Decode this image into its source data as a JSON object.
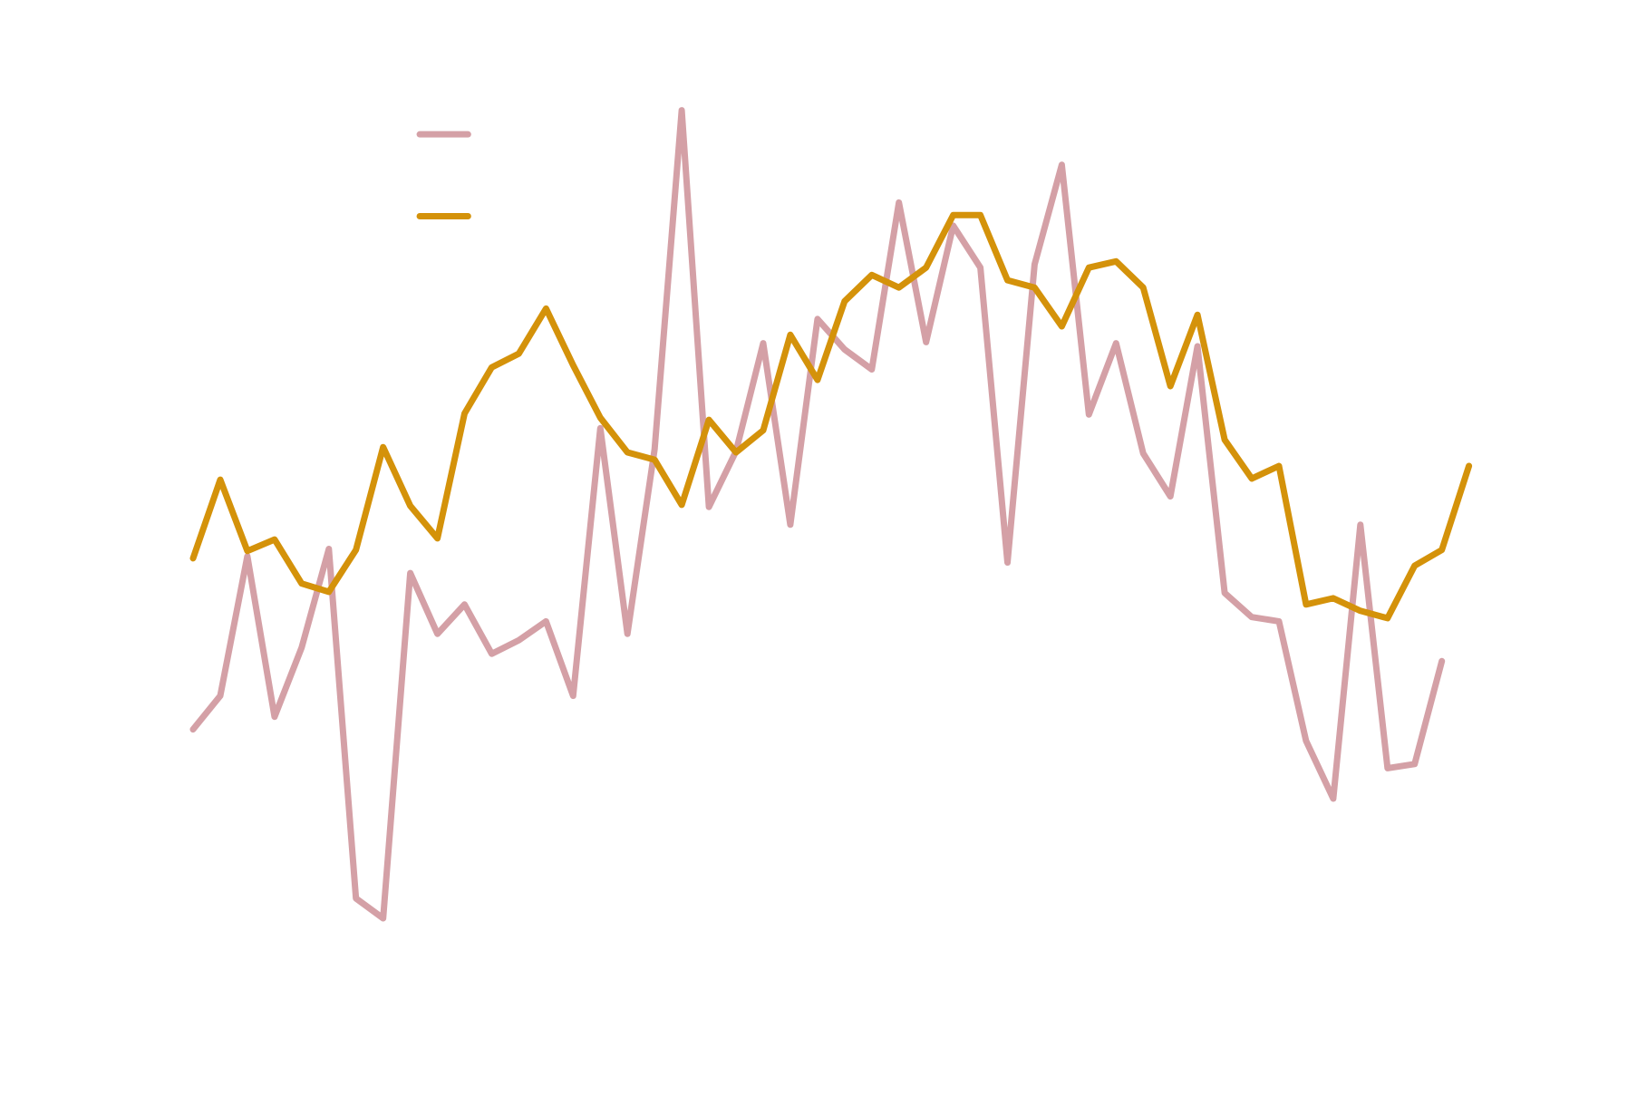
{
  "chart_data": {
    "type": "line",
    "categories": [
      null,
      null,
      null,
      null,
      null,
      null,
      null,
      null,
      null,
      null,
      null,
      null,
      null,
      null,
      null,
      null,
      null,
      null,
      null,
      null,
      null,
      null,
      null,
      null,
      null,
      null,
      null,
      null,
      null,
      null,
      null,
      null,
      null,
      null,
      null,
      null,
      null,
      null,
      null,
      null,
      null,
      null,
      null,
      null,
      null,
      null,
      null,
      null
    ],
    "ylim": [
      0,
      104
    ],
    "series": [
      {
        "color": "#d4a0a6",
        "values": [
          34.5,
          37.7,
          51,
          35.7,
          42.3,
          51.7,
          18.4,
          16.5,
          49.4,
          43.6,
          46.4,
          41.7,
          43,
          44.8,
          37.7,
          63.2,
          43.6,
          61.2,
          93.5,
          55.7,
          61,
          71.3,
          54,
          73.6,
          70.7,
          68.8,
          84.7,
          71.4,
          82.5,
          78.5,
          50.4,
          78.8,
          88.3,
          64.5,
          71.3,
          60.8,
          56.7,
          71,
          47.5,
          45.2,
          44.8,
          33.4,
          27.9,
          54,
          30.8,
          31.2,
          41,
          null
        ]
      },
      {
        "color": "#d4920a",
        "values": [
          50.8,
          58.3,
          51.5,
          52.6,
          48.4,
          47.6,
          51.6,
          61.4,
          55.8,
          52.7,
          64.6,
          69,
          70.3,
          74.6,
          69.2,
          64.2,
          60.9,
          60.2,
          55.9,
          64,
          60.9,
          63,
          72.1,
          67.8,
          75.3,
          77.8,
          76.6,
          78.5,
          83.5,
          83.5,
          77.3,
          76.6,
          72.9,
          78.5,
          79.1,
          76.6,
          67.2,
          74,
          62.1,
          58.4,
          59.6,
          46.4,
          47,
          45.8,
          45.1,
          50.1,
          51.6,
          59.6
        ]
      }
    ]
  }
}
